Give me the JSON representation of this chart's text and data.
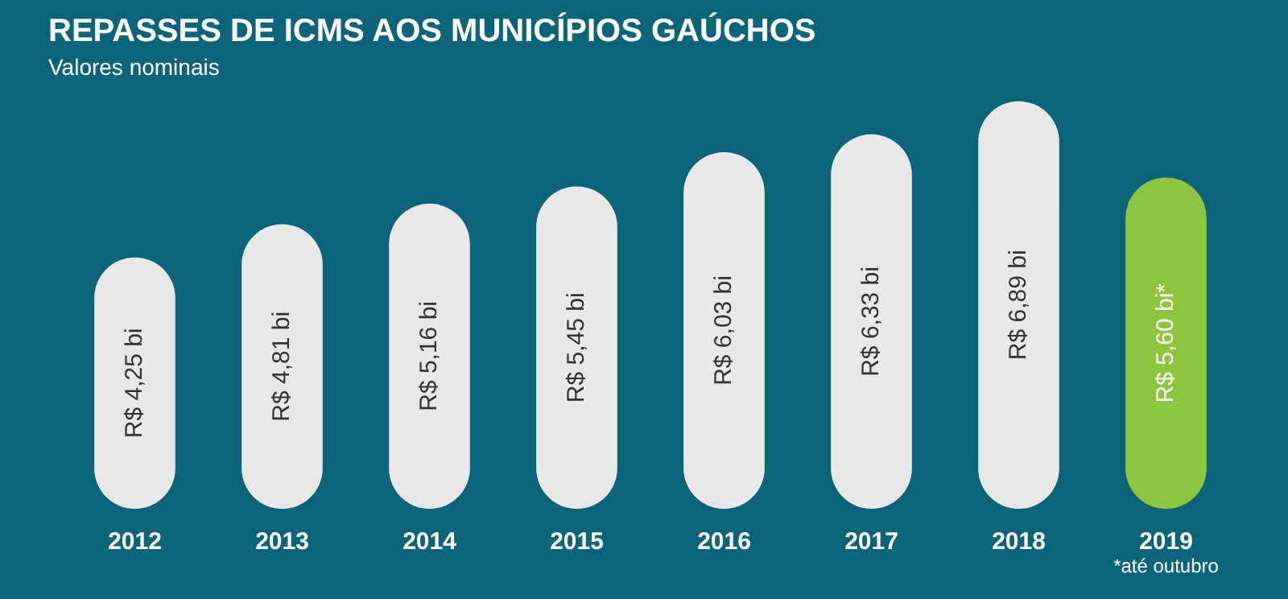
{
  "chart_data": {
    "type": "bar",
    "title": "REPASSES DE ICMS AOS MUNICÍPIOS GAÚCHOS",
    "subtitle": "Valores nominais",
    "categories": [
      "2012",
      "2013",
      "2014",
      "2015",
      "2016",
      "2017",
      "2018",
      "2019"
    ],
    "values": [
      4.25,
      4.81,
      5.16,
      5.45,
      6.03,
      6.33,
      6.89,
      5.6
    ],
    "colors": [
      "#e8e8e8",
      "#e8e8e8",
      "#e8e8e8",
      "#e8e8e8",
      "#e8e8e8",
      "#e8e8e8",
      "#e8e8e8",
      "#8cc63f"
    ],
    "value_labels": [
      "R$ 4,25 bi",
      "R$ 4,81 bi",
      "R$ 5,16 bi",
      "R$ 5,45 bi",
      "R$ 6,03 bi",
      "R$ 6,33 bi",
      "R$ 6,89 bi",
      "R$ 5,60 bi*"
    ],
    "relative": false,
    "grid": false,
    "legend": false,
    "annotations": [
      "*até outubro"
    ]
  }
}
